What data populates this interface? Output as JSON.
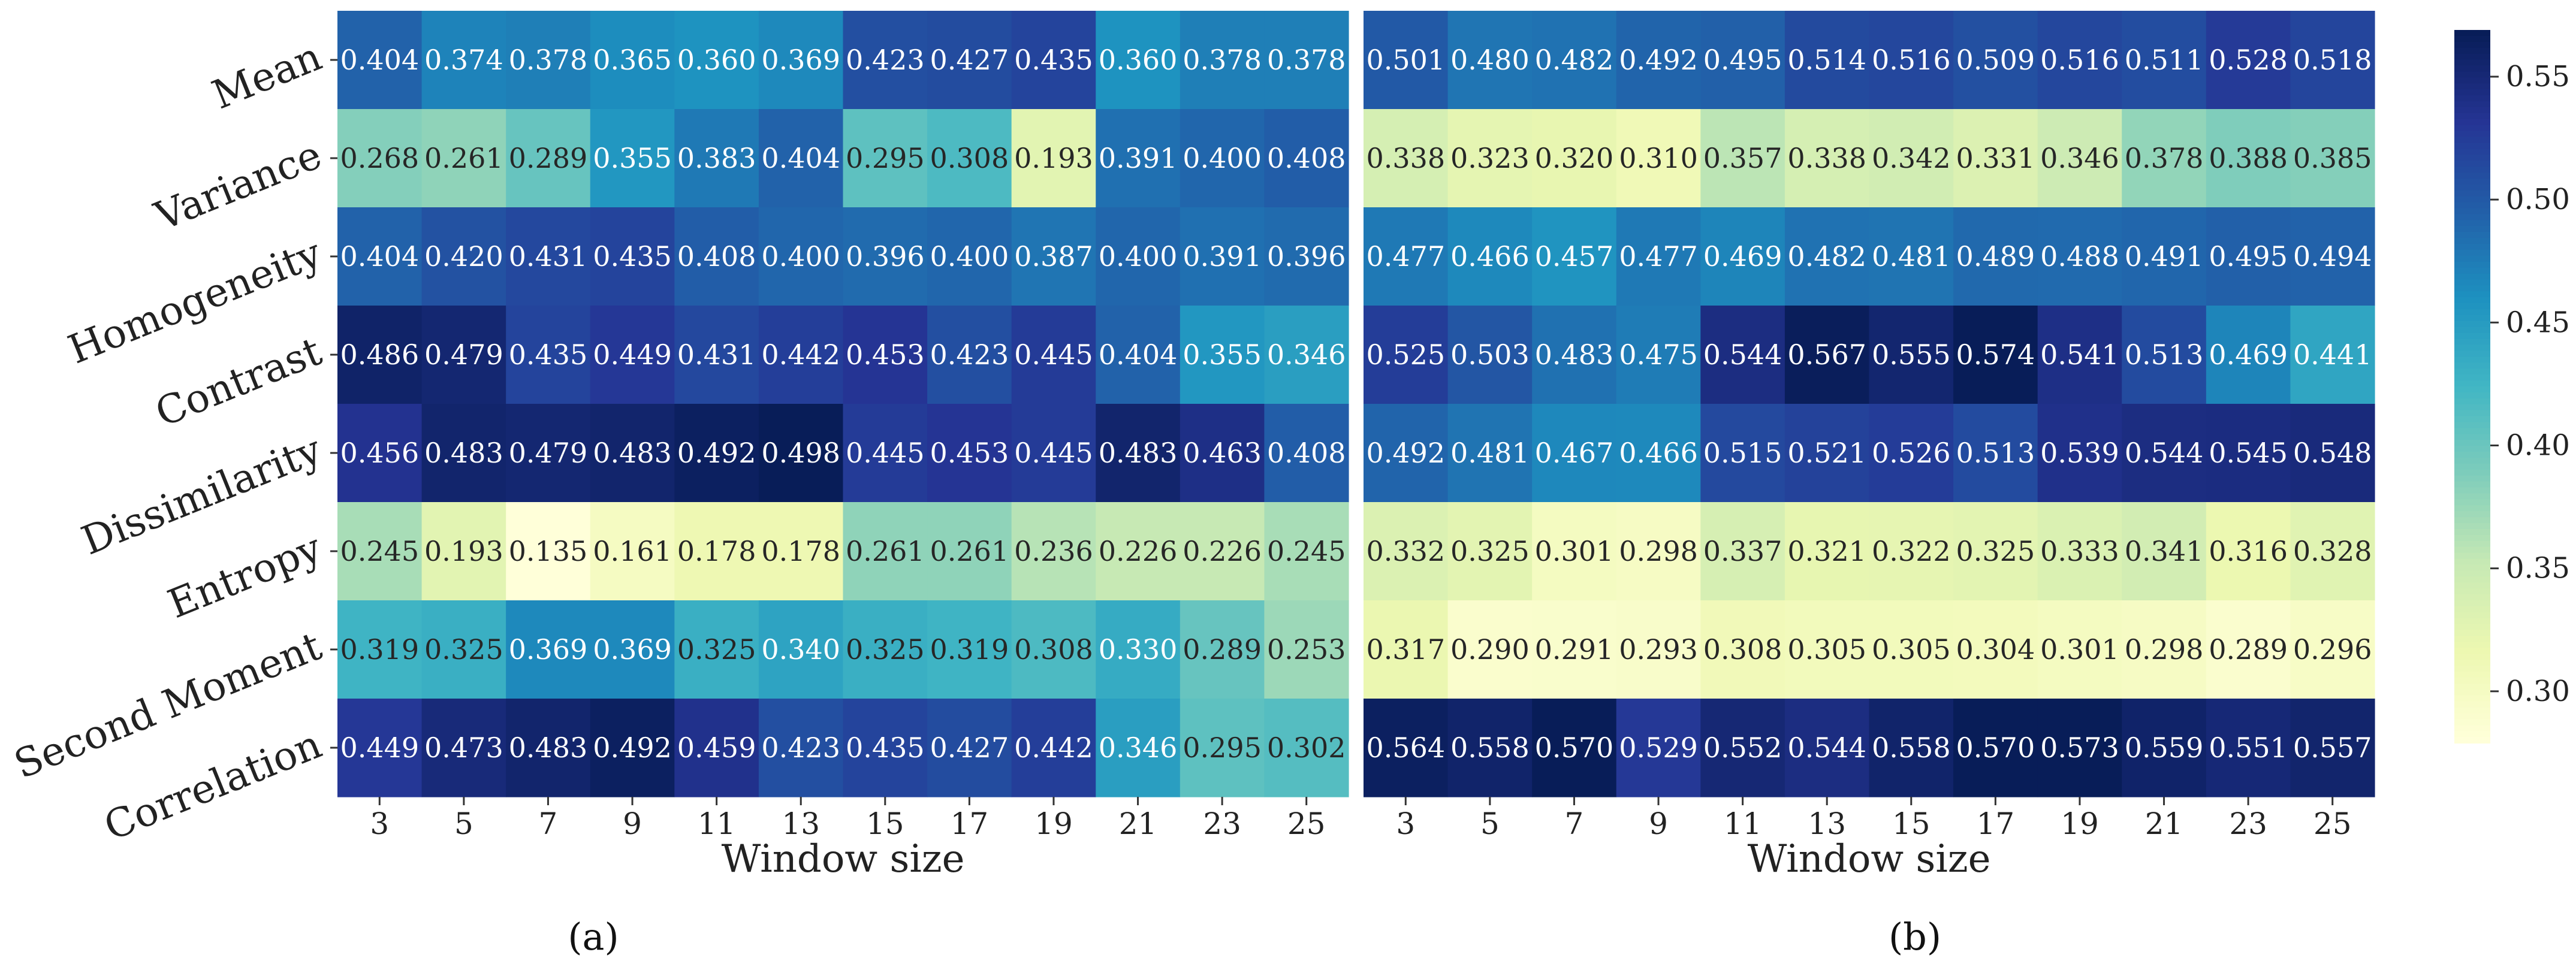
{
  "chart_data": [
    {
      "type": "heatmap",
      "panel_label": "(a)",
      "xlabel": "Window size",
      "ylabel": "",
      "x_categories": [
        "3",
        "5",
        "7",
        "9",
        "11",
        "13",
        "15",
        "17",
        "19",
        "21",
        "23",
        "25"
      ],
      "y_categories": [
        "Mean",
        "Variance",
        "Homogeneity",
        "Contrast",
        "Dissimilarity",
        "Entropy",
        "Second Moment",
        "Correlation"
      ],
      "values": [
        [
          "0.404",
          "0.374",
          "0.378",
          "0.365",
          "0.360",
          "0.369",
          "0.423",
          "0.427",
          "0.435",
          "0.360",
          "0.378",
          "0.378"
        ],
        [
          "0.268",
          "0.261",
          "0.289",
          "0.355",
          "0.383",
          "0.404",
          "0.295",
          "0.308",
          "0.193",
          "0.391",
          "0.400",
          "0.408"
        ],
        [
          "0.404",
          "0.420",
          "0.431",
          "0.435",
          "0.408",
          "0.400",
          "0.396",
          "0.400",
          "0.387",
          "0.400",
          "0.391",
          "0.396"
        ],
        [
          "0.486",
          "0.479",
          "0.435",
          "0.449",
          "0.431",
          "0.442",
          "0.453",
          "0.423",
          "0.445",
          "0.404",
          "0.355",
          "0.346"
        ],
        [
          "0.456",
          "0.483",
          "0.479",
          "0.483",
          "0.492",
          "0.498",
          "0.445",
          "0.453",
          "0.445",
          "0.483",
          "0.463",
          "0.408"
        ],
        [
          "0.245",
          "0.193",
          "0.135",
          "0.161",
          "0.178",
          "0.178",
          "0.261",
          "0.261",
          "0.236",
          "0.226",
          "0.226",
          "0.245"
        ],
        [
          "0.319",
          "0.325",
          "0.369",
          "0.369",
          "0.325",
          "0.340",
          "0.325",
          "0.319",
          "0.308",
          "0.330",
          "0.289",
          "0.253"
        ],
        [
          "0.449",
          "0.473",
          "0.483",
          "0.492",
          "0.459",
          "0.423",
          "0.435",
          "0.427",
          "0.442",
          "0.346",
          "0.295",
          "0.302"
        ]
      ],
      "color_range": [
        0.135,
        0.498
      ],
      "colormap": "YlGnBu"
    },
    {
      "type": "heatmap",
      "panel_label": "(b)",
      "xlabel": "Window size",
      "ylabel": "",
      "x_categories": [
        "3",
        "5",
        "7",
        "9",
        "11",
        "13",
        "15",
        "17",
        "19",
        "21",
        "23",
        "25"
      ],
      "y_categories": [
        "Mean",
        "Variance",
        "Homogeneity",
        "Contrast",
        "Dissimilarity",
        "Entropy",
        "Second Moment",
        "Correlation"
      ],
      "values": [
        [
          "0.501",
          "0.480",
          "0.482",
          "0.492",
          "0.495",
          "0.514",
          "0.516",
          "0.509",
          "0.516",
          "0.511",
          "0.528",
          "0.518"
        ],
        [
          "0.338",
          "0.323",
          "0.320",
          "0.310",
          "0.357",
          "0.338",
          "0.342",
          "0.331",
          "0.346",
          "0.378",
          "0.388",
          "0.385"
        ],
        [
          "0.477",
          "0.466",
          "0.457",
          "0.477",
          "0.469",
          "0.482",
          "0.481",
          "0.489",
          "0.488",
          "0.491",
          "0.495",
          "0.494"
        ],
        [
          "0.525",
          "0.503",
          "0.483",
          "0.475",
          "0.544",
          "0.567",
          "0.555",
          "0.574",
          "0.541",
          "0.513",
          "0.469",
          "0.441"
        ],
        [
          "0.492",
          "0.481",
          "0.467",
          "0.466",
          "0.515",
          "0.521",
          "0.526",
          "0.513",
          "0.539",
          "0.544",
          "0.545",
          "0.548"
        ],
        [
          "0.332",
          "0.325",
          "0.301",
          "0.298",
          "0.337",
          "0.321",
          "0.322",
          "0.325",
          "0.333",
          "0.341",
          "0.316",
          "0.328"
        ],
        [
          "0.317",
          "0.290",
          "0.291",
          "0.293",
          "0.308",
          "0.305",
          "0.305",
          "0.304",
          "0.301",
          "0.298",
          "0.289",
          "0.296"
        ],
        [
          "0.564",
          "0.558",
          "0.570",
          "0.529",
          "0.552",
          "0.544",
          "0.558",
          "0.570",
          "0.573",
          "0.559",
          "0.551",
          "0.557"
        ]
      ],
      "color_range": [
        0.279,
        0.569
      ],
      "colormap": "YlGnBu"
    }
  ],
  "colorbar": {
    "ticks": [
      "0.30",
      "0.35",
      "0.40",
      "0.45",
      "0.50",
      "0.55"
    ],
    "range": [
      0.279,
      0.569
    ]
  },
  "colors": {
    "ylgnbu": [
      "#ffffd9",
      "#edf8b1",
      "#c7e9b4",
      "#7fcdbb",
      "#41b6c4",
      "#1d91c0",
      "#225ea8",
      "#253494",
      "#081d58"
    ]
  }
}
